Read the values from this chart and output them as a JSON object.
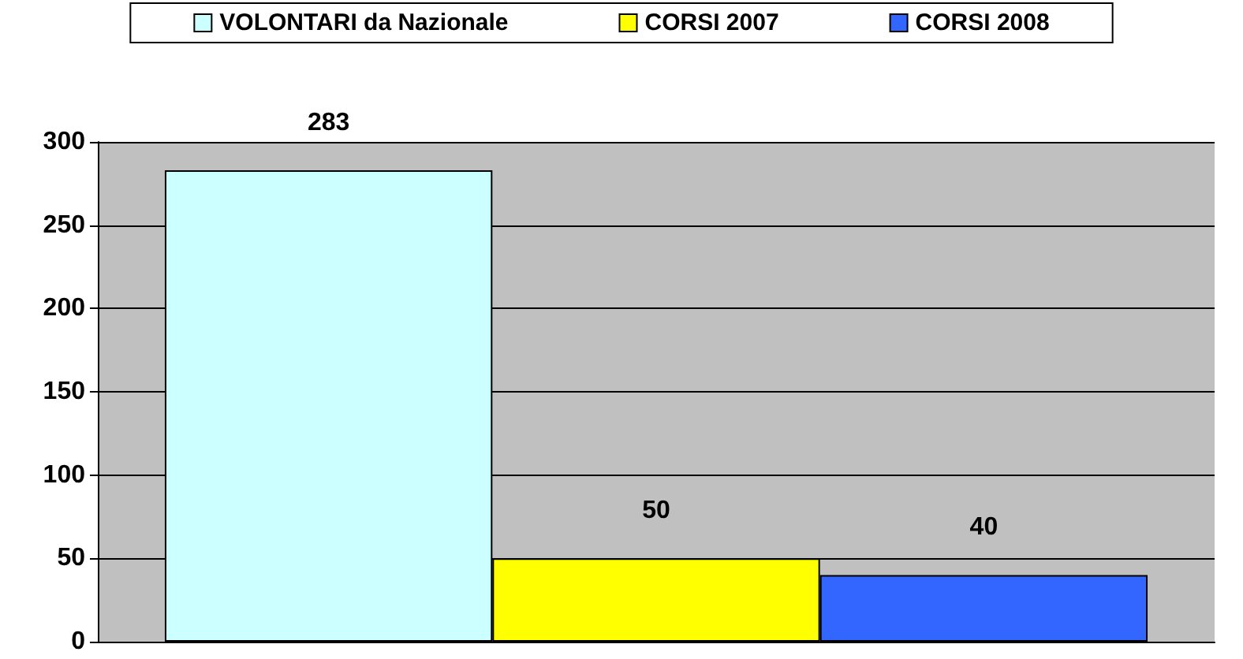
{
  "chart_data": {
    "type": "bar",
    "categories": [
      null
    ],
    "series": [
      {
        "name": "VOLONTARI da Nazionale",
        "color": "#ccffff",
        "values": [
          283
        ]
      },
      {
        "name": "CORSI 2007",
        "color": "#ffff00",
        "values": [
          50
        ]
      },
      {
        "name": "CORSI 2008",
        "color": "#3366ff",
        "values": [
          40
        ]
      }
    ],
    "ylim": [
      0,
      300
    ],
    "yticks": [
      0,
      50,
      100,
      150,
      200,
      250,
      300
    ],
    "grid": "y",
    "legend": "top",
    "data_labels": true
  }
}
